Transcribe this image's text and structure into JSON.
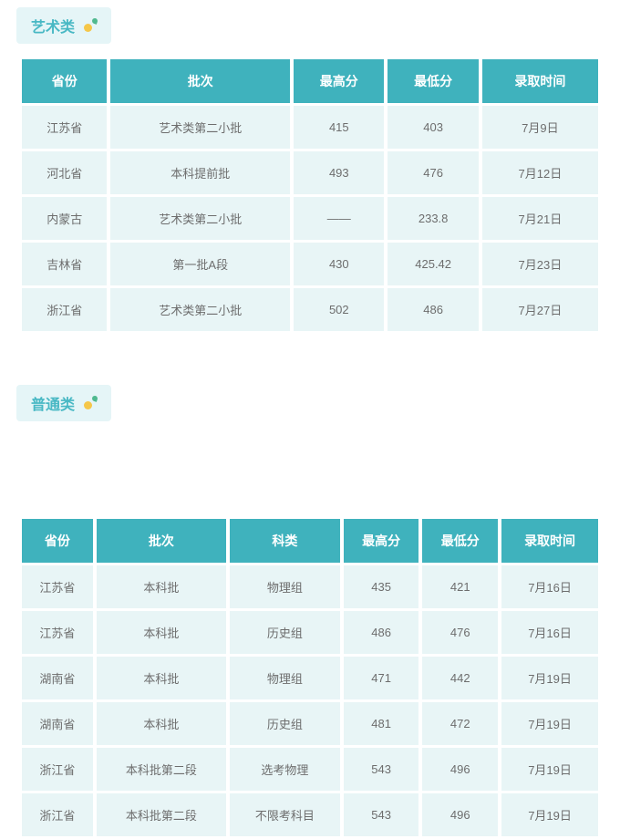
{
  "colors": {
    "header_bg": "#3fb2bd",
    "header_text": "#ffffff",
    "cell_bg": "#e8f5f6",
    "cell_text": "#6d6d6d",
    "label_bg": "#e5f5f7",
    "label_text": "#48b8c4"
  },
  "section1": {
    "title": "艺术类",
    "columns": [
      "省份",
      "批次",
      "最高分",
      "最低分",
      "录取时间"
    ],
    "rows": [
      [
        "江苏省",
        "艺术类第二小批",
        "415",
        "403",
        "7月9日"
      ],
      [
        "河北省",
        "本科提前批",
        "493",
        "476",
        "7月12日"
      ],
      [
        "内蒙古",
        "艺术类第二小批",
        "——",
        "233.8",
        "7月21日"
      ],
      [
        "吉林省",
        "第一批A段",
        "430",
        "425.42",
        "7月23日"
      ],
      [
        "浙江省",
        "艺术类第二小批",
        "502",
        "486",
        "7月27日"
      ]
    ]
  },
  "section2": {
    "title": "普通类",
    "columns": [
      "省份",
      "批次",
      "科类",
      "最高分",
      "最低分",
      "录取时间"
    ],
    "rows": [
      [
        "江苏省",
        "本科批",
        "物理组",
        "435",
        "421",
        "7月16日"
      ],
      [
        "江苏省",
        "本科批",
        "历史组",
        "486",
        "476",
        "7月16日"
      ],
      [
        "湖南省",
        "本科批",
        "物理组",
        "471",
        "442",
        "7月19日"
      ],
      [
        "湖南省",
        "本科批",
        "历史组",
        "481",
        "472",
        "7月19日"
      ],
      [
        "浙江省",
        "本科批第二段",
        "选考物理",
        "543",
        "496",
        "7月19日"
      ],
      [
        "浙江省",
        "本科批第二段",
        "不限考科目",
        "543",
        "496",
        "7月19日"
      ]
    ]
  }
}
